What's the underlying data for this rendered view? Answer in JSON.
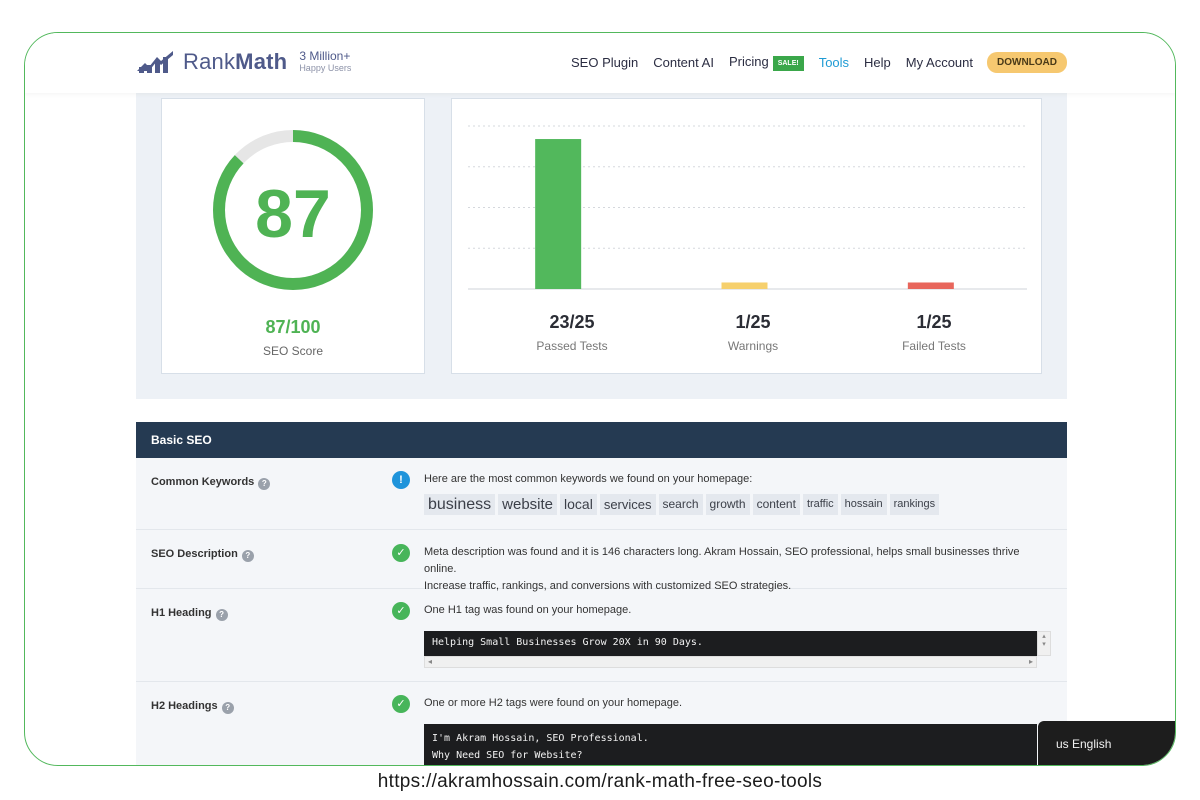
{
  "brand": {
    "name_part1": "Rank",
    "name_part2": "Math",
    "users_big": "3 Million+",
    "users_small": "Happy Users"
  },
  "nav": {
    "items": [
      "SEO Plugin",
      "Content AI",
      "Pricing",
      "Tools",
      "Help",
      "My Account"
    ],
    "sale_badge": "SALE!",
    "download": "DOWNLOAD",
    "active": "Tools"
  },
  "score": {
    "value": "87",
    "fraction": "87/100",
    "label": "SEO Score",
    "percent": 87,
    "color": "#4fb354"
  },
  "chart_data": {
    "type": "bar",
    "categories": [
      "Passed Tests",
      "Warnings",
      "Failed Tests"
    ],
    "values": [
      23,
      1,
      1
    ],
    "ylim": [
      0,
      25
    ],
    "grid": true,
    "colors": [
      "#52b85c",
      "#f6d06d",
      "#e8665c"
    ],
    "value_labels": [
      "23/25",
      "1/25",
      "1/25"
    ]
  },
  "basic_seo": {
    "title": "Basic SEO",
    "rows": {
      "keywords": {
        "label": "Common Keywords",
        "text": "Here are the most common keywords we found on your homepage:",
        "keywords": [
          "business",
          "website",
          "local",
          "services",
          "search",
          "growth",
          "content",
          "traffic",
          "hossain",
          "rankings"
        ]
      },
      "description": {
        "label": "SEO Description",
        "text_line1": "Meta description was found and it is 146 characters long. Akram Hossain, SEO professional, helps small businesses thrive online.",
        "text_line2": "Increase traffic, rankings, and conversions with customized SEO strategies."
      },
      "h1": {
        "label": "H1 Heading",
        "text": "One H1 tag was found on your homepage.",
        "code": "Helping Small Businesses Grow 20X in 90 Days."
      },
      "h2": {
        "label": "H2 Headings",
        "text": "One or more H2 tags were found on your homepage.",
        "code_line1": "I'm Akram Hossain, SEO Professional.",
        "code_line2": "Why Need SEO for Website?"
      }
    }
  },
  "language": "us English",
  "url": "https://akramhossain.com/rank-math-free-seo-tools"
}
